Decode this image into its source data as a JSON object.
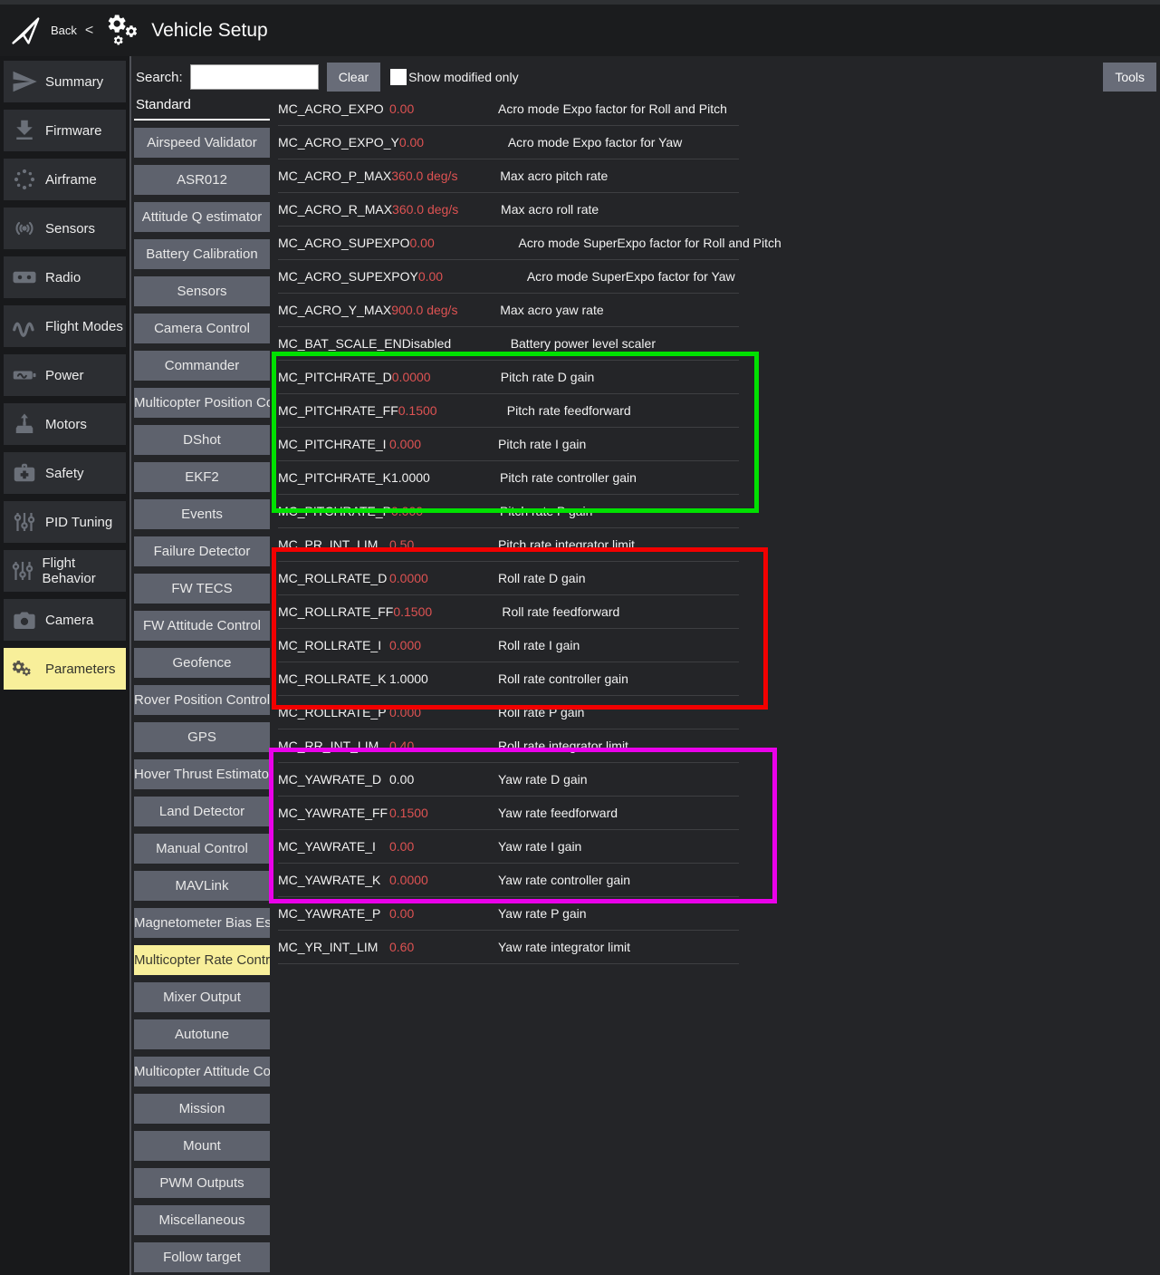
{
  "header": {
    "back_label": "Back",
    "chevron": "<",
    "title": "Vehicle Setup"
  },
  "toolbar": {
    "search_label": "Search:",
    "search_value": "",
    "clear_label": "Clear",
    "show_modified_label": "Show modified only",
    "tools_label": "Tools"
  },
  "sidebar": {
    "items": [
      {
        "label": "Summary",
        "icon": "plane",
        "selected": false
      },
      {
        "label": "Firmware",
        "icon": "download",
        "selected": false
      },
      {
        "label": "Airframe",
        "icon": "airframe",
        "selected": false
      },
      {
        "label": "Sensors",
        "icon": "signal",
        "selected": false
      },
      {
        "label": "Radio",
        "icon": "radio",
        "selected": false
      },
      {
        "label": "Flight Modes",
        "icon": "wave",
        "selected": false
      },
      {
        "label": "Power",
        "icon": "battery",
        "selected": false
      },
      {
        "label": "Motors",
        "icon": "motor",
        "selected": false
      },
      {
        "label": "Safety",
        "icon": "firstaid",
        "selected": false
      },
      {
        "label": "PID Tuning",
        "icon": "sliders",
        "selected": false
      },
      {
        "label": "Flight Behavior",
        "icon": "sliders",
        "selected": false
      },
      {
        "label": "Camera",
        "icon": "camera",
        "selected": false
      },
      {
        "label": "Parameters",
        "icon": "gears",
        "selected": true
      }
    ]
  },
  "categories": {
    "header": "Standard",
    "items": [
      {
        "label": "Airspeed Validator",
        "selected": false
      },
      {
        "label": "ASR012",
        "selected": false
      },
      {
        "label": "Attitude Q estimator",
        "selected": false
      },
      {
        "label": "Battery Calibration",
        "selected": false
      },
      {
        "label": "Sensors",
        "selected": false
      },
      {
        "label": "Camera Control",
        "selected": false
      },
      {
        "label": "Commander",
        "selected": false
      },
      {
        "label": "Multicopter Position Control",
        "selected": false
      },
      {
        "label": "DShot",
        "selected": false
      },
      {
        "label": "EKF2",
        "selected": false
      },
      {
        "label": "Events",
        "selected": false
      },
      {
        "label": "Failure Detector",
        "selected": false
      },
      {
        "label": "FW TECS",
        "selected": false
      },
      {
        "label": "FW Attitude Control",
        "selected": false
      },
      {
        "label": "Geofence",
        "selected": false
      },
      {
        "label": "Rover Position Control",
        "selected": false
      },
      {
        "label": "GPS",
        "selected": false
      },
      {
        "label": "Hover Thrust Estimator",
        "selected": false
      },
      {
        "label": "Land Detector",
        "selected": false
      },
      {
        "label": "Manual Control",
        "selected": false
      },
      {
        "label": "MAVLink",
        "selected": false
      },
      {
        "label": "Magnetometer Bias Estimator",
        "selected": false
      },
      {
        "label": "Multicopter Rate Control",
        "selected": true
      },
      {
        "label": "Mixer Output",
        "selected": false
      },
      {
        "label": "Autotune",
        "selected": false
      },
      {
        "label": "Multicopter Attitude Control",
        "selected": false
      },
      {
        "label": "Mission",
        "selected": false
      },
      {
        "label": "Mount",
        "selected": false
      },
      {
        "label": "PWM Outputs",
        "selected": false
      },
      {
        "label": "Miscellaneous",
        "selected": false
      },
      {
        "label": "Follow target",
        "selected": false
      }
    ]
  },
  "parameters": {
    "rows": [
      {
        "name": "MC_ACRO_EXPO",
        "value": "0.00",
        "modified": true,
        "description": "Acro mode Expo factor for Roll and Pitch"
      },
      {
        "name": "MC_ACRO_EXPO_Y",
        "value": "0.00",
        "modified": true,
        "description": "Acro mode Expo factor for Yaw"
      },
      {
        "name": "MC_ACRO_P_MAX",
        "value": "360.0 deg/s",
        "modified": true,
        "description": "Max acro pitch rate"
      },
      {
        "name": "MC_ACRO_R_MAX",
        "value": "360.0 deg/s",
        "modified": true,
        "description": "Max acro roll rate"
      },
      {
        "name": "MC_ACRO_SUPEXPO",
        "value": "0.00",
        "modified": true,
        "description": "Acro mode SuperExpo factor for Roll and Pitch"
      },
      {
        "name": "MC_ACRO_SUPEXPOY",
        "value": "0.00",
        "modified": true,
        "description": "Acro mode SuperExpo factor for Yaw"
      },
      {
        "name": "MC_ACRO_Y_MAX",
        "value": "900.0 deg/s",
        "modified": true,
        "description": "Max acro yaw rate"
      },
      {
        "name": "MC_BAT_SCALE_EN",
        "value": "Disabled",
        "modified": false,
        "description": "Battery power level scaler"
      },
      {
        "name": "MC_PITCHRATE_D",
        "value": "0.0000",
        "modified": true,
        "description": "Pitch rate D gain"
      },
      {
        "name": "MC_PITCHRATE_FF",
        "value": "0.1500",
        "modified": true,
        "description": "Pitch rate feedforward"
      },
      {
        "name": "MC_PITCHRATE_I",
        "value": "0.000",
        "modified": true,
        "description": "Pitch rate I gain"
      },
      {
        "name": "MC_PITCHRATE_K",
        "value": "1.0000",
        "modified": false,
        "description": "Pitch rate controller gain"
      },
      {
        "name": "MC_PITCHRATE_P",
        "value": "0.000",
        "modified": true,
        "description": "Pitch rate P gain"
      },
      {
        "name": "MC_PR_INT_LIM",
        "value": "0.50",
        "modified": true,
        "description": "Pitch rate integrator limit"
      },
      {
        "name": "MC_ROLLRATE_D",
        "value": "0.0000",
        "modified": true,
        "description": "Roll rate D gain"
      },
      {
        "name": "MC_ROLLRATE_FF",
        "value": "0.1500",
        "modified": true,
        "description": "Roll rate feedforward"
      },
      {
        "name": "MC_ROLLRATE_I",
        "value": "0.000",
        "modified": true,
        "description": "Roll rate I gain"
      },
      {
        "name": "MC_ROLLRATE_K",
        "value": "1.0000",
        "modified": false,
        "description": "Roll rate controller gain"
      },
      {
        "name": "MC_ROLLRATE_P",
        "value": "0.000",
        "modified": true,
        "description": "Roll rate P gain"
      },
      {
        "name": "MC_RR_INT_LIM",
        "value": "0.40",
        "modified": true,
        "description": "Roll rate integrator limit"
      },
      {
        "name": "MC_YAWRATE_D",
        "value": "0.00",
        "modified": false,
        "description": "Yaw rate D gain"
      },
      {
        "name": "MC_YAWRATE_FF",
        "value": "0.1500",
        "modified": true,
        "description": "Yaw rate feedforward"
      },
      {
        "name": "MC_YAWRATE_I",
        "value": "0.00",
        "modified": true,
        "description": "Yaw rate I gain"
      },
      {
        "name": "MC_YAWRATE_K",
        "value": "0.0000",
        "modified": true,
        "description": "Yaw rate controller gain"
      },
      {
        "name": "MC_YAWRATE_P",
        "value": "0.00",
        "modified": true,
        "description": "Yaw rate P gain"
      },
      {
        "name": "MC_YR_INT_LIM",
        "value": "0.60",
        "modified": true,
        "description": "Yaw rate integrator limit"
      }
    ]
  },
  "highlights": {
    "pitch": {
      "group": "MC_PITCHRATE_D..MC_PITCHRATE_P",
      "color": "#00e100",
      "css": "border-color:#00e100"
    },
    "roll": {
      "group": "MC_ROLLRATE_D..MC_ROLLRATE_P",
      "color": "#f20000",
      "css": "border-color:#f20000"
    },
    "yaw": {
      "group": "MC_YAWRATE_D..MC_YAWRATE_P",
      "color": "#ea00ea",
      "css": "border-color:#ea00ea"
    }
  },
  "colors": {
    "selected_item": "#f8ef9a",
    "modified_value": "#dd5252",
    "category_button": "#5e626d",
    "background": "#242528"
  }
}
